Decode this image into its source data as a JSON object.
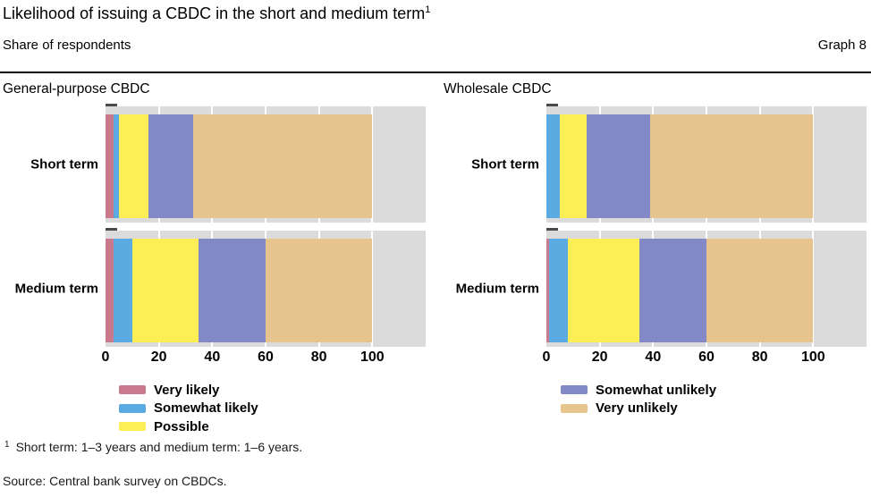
{
  "header": {
    "title": "Likelihood of issuing a CBDC in the short and medium term",
    "title_superscript": "1",
    "subtitle_left": "Share of respondents",
    "subtitle_right": "Graph 8"
  },
  "chart_data": [
    {
      "type": "bar",
      "orientation": "horizontal",
      "stacked": true,
      "title": "General-purpose CBDC",
      "categories": [
        "Short term",
        "Medium term"
      ],
      "series": [
        {
          "name": "Very likely",
          "color": "#c9798c",
          "values": [
            3,
            3
          ]
        },
        {
          "name": "Somewhat likely",
          "color": "#5baae2",
          "values": [
            2,
            7
          ]
        },
        {
          "name": "Possible",
          "color": "#feee55",
          "values": [
            11,
            25
          ]
        },
        {
          "name": "Somewhat unlikely",
          "color": "#8289c6",
          "values": [
            17,
            25
          ]
        },
        {
          "name": "Very unlikely",
          "color": "#e6c48d",
          "values": [
            67,
            40
          ]
        }
      ],
      "xlim": [
        0,
        120
      ],
      "x_ticks": [
        0,
        20,
        40,
        60,
        80,
        100
      ],
      "xlabel": "",
      "ylabel": "",
      "grid": true,
      "plot_background": "#dbdbdb",
      "legend_position": "below"
    },
    {
      "type": "bar",
      "orientation": "horizontal",
      "stacked": true,
      "title": "Wholesale CBDC",
      "categories": [
        "Short term",
        "Medium term"
      ],
      "series": [
        {
          "name": "Very likely",
          "color": "#c9798c",
          "values": [
            0,
            1
          ]
        },
        {
          "name": "Somewhat likely",
          "color": "#5baae2",
          "values": [
            5,
            7
          ]
        },
        {
          "name": "Possible",
          "color": "#feee55",
          "values": [
            10,
            27
          ]
        },
        {
          "name": "Somewhat unlikely",
          "color": "#8289c6",
          "values": [
            24,
            25
          ]
        },
        {
          "name": "Very unlikely",
          "color": "#e6c48d",
          "values": [
            61,
            40
          ]
        }
      ],
      "xlim": [
        0,
        120
      ],
      "x_ticks": [
        0,
        20,
        40,
        60,
        80,
        100
      ],
      "xlabel": "",
      "ylabel": "",
      "grid": true,
      "plot_background": "#dbdbdb",
      "legend_position": "below"
    }
  ],
  "legend": {
    "left_items": [
      {
        "label": "Very likely",
        "color": "#c9798c"
      },
      {
        "label": "Somewhat likely",
        "color": "#5baae2"
      },
      {
        "label": "Possible",
        "color": "#feee55"
      }
    ],
    "right_items": [
      {
        "label": "Somewhat unlikely",
        "color": "#8289c6"
      },
      {
        "label": "Very unlikely",
        "color": "#e6c48d"
      }
    ]
  },
  "footnote": {
    "marker": "1",
    "text": "Short term: 1–3 years and medium term: 1–6 years."
  },
  "source": "Source: Central bank survey on CBDCs."
}
